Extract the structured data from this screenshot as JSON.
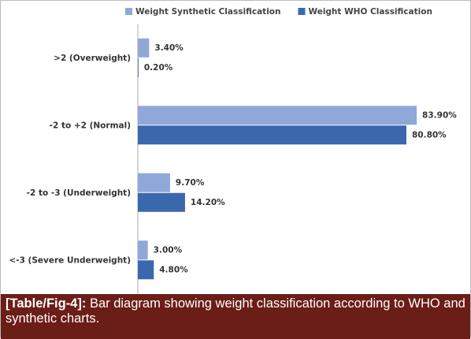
{
  "chart_data": {
    "type": "hbar",
    "categories": [
      ">2 (Overweight)",
      "-2 to +2 (Normal)",
      "-2 to -3 (Underweight)",
      "<-3 (Severe Underweight)"
    ],
    "series": [
      {
        "name": "Weight Synthetic Classification",
        "color": "#8fa8d8",
        "values": [
          3.4,
          83.9,
          9.7,
          3.0
        ],
        "value_labels": [
          "3.40%",
          "83.90%",
          "9.70%",
          "3.00%"
        ]
      },
      {
        "name": "Weight WHO Classification",
        "color": "#3b68ad",
        "values": [
          0.2,
          80.8,
          14.2,
          4.8
        ],
        "value_labels": [
          "0.20%",
          "80.80%",
          "14.20%",
          "4.80%"
        ]
      }
    ],
    "xlim": [
      0,
      100
    ],
    "legend": "top"
  },
  "caption": {
    "label": "[Table/Fig-4]:",
    "text": "Bar diagram showing weight classification according to WHO and synthetic charts."
  }
}
